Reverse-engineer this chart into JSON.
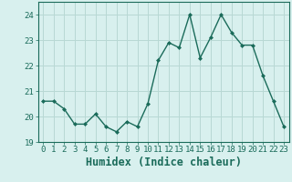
{
  "x": [
    0,
    1,
    2,
    3,
    4,
    5,
    6,
    7,
    8,
    9,
    10,
    11,
    12,
    13,
    14,
    15,
    16,
    17,
    18,
    19,
    20,
    21,
    22,
    23
  ],
  "y": [
    20.6,
    20.6,
    20.3,
    19.7,
    19.7,
    20.1,
    19.6,
    19.4,
    19.8,
    19.6,
    20.5,
    22.2,
    22.9,
    22.7,
    24.0,
    22.3,
    23.1,
    24.0,
    23.3,
    22.8,
    22.8,
    21.6,
    20.6,
    19.6
  ],
  "xlabel": "Humidex (Indice chaleur)",
  "ylim": [
    19,
    24.5
  ],
  "xlim": [
    -0.5,
    23.5
  ],
  "yticks": [
    19,
    20,
    21,
    22,
    23,
    24
  ],
  "xticks": [
    0,
    1,
    2,
    3,
    4,
    5,
    6,
    7,
    8,
    9,
    10,
    11,
    12,
    13,
    14,
    15,
    16,
    17,
    18,
    19,
    20,
    21,
    22,
    23
  ],
  "line_color": "#1a6b5a",
  "marker": "D",
  "marker_size": 2.0,
  "bg_color": "#d8f0ee",
  "grid_color": "#b8d8d4",
  "tick_label_fontsize": 6.5,
  "xlabel_fontsize": 8.5,
  "linewidth": 1.0
}
